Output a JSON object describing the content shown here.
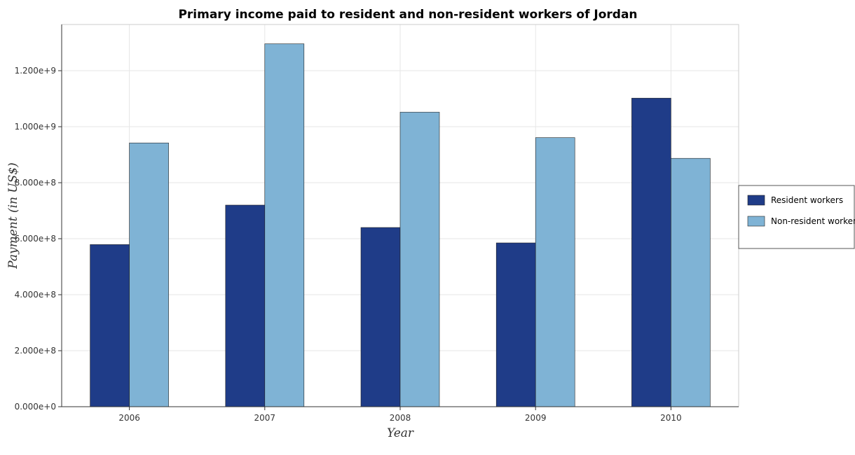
{
  "chart_data": {
    "type": "bar",
    "title": "Primary income paid to resident and non-resident workers of Jordan",
    "xlabel": "Year",
    "ylabel": "Payment (in US$)",
    "categories": [
      "2006",
      "2007",
      "2008",
      "2009",
      "2010"
    ],
    "series": [
      {
        "name": "Resident workers",
        "color": "#1f3c88",
        "values": [
          579000000,
          720000000,
          640000000,
          585000000,
          1102000000
        ]
      },
      {
        "name": "Non-resident workers",
        "color": "#7fb3d5",
        "values": [
          942000000,
          1296000000,
          1052000000,
          961000000,
          887000000
        ]
      }
    ],
    "yticks": [
      "0.000e+0",
      "2.000e+8",
      "4.000e+8",
      "6.000e+8",
      "8.000e+8",
      "1.000e+9",
      "1.200e+9"
    ],
    "ylim": [
      0,
      1365000000
    ],
    "grid": true,
    "legend_position": "right"
  }
}
